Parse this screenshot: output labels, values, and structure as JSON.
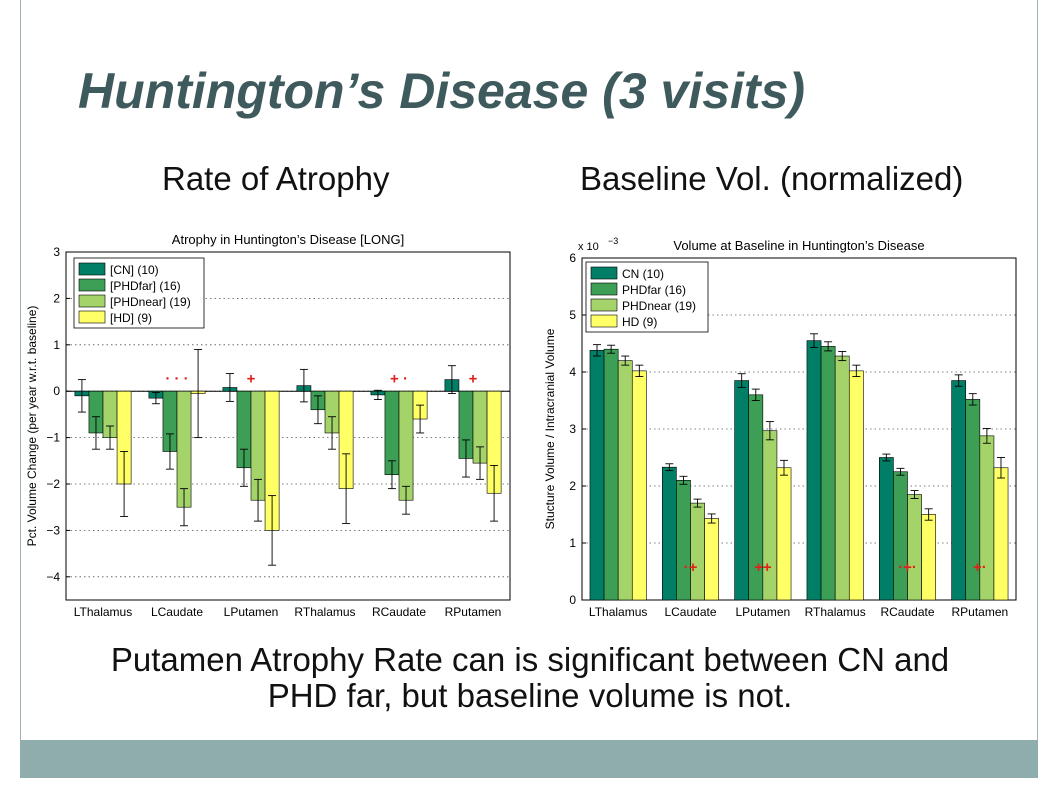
{
  "slide": {
    "title": "Huntington’s Disease (3 visits)",
    "subtitle_left": "Rate of Atrophy",
    "subtitle_right": "Baseline Vol. (normalized)",
    "caption_line1": "Putamen Atrophy Rate can is significant between CN and",
    "caption_line2": "PHD far, but baseline volume is not."
  },
  "colors": [
    "#007f66",
    "#3d9f55",
    "#a4d36a",
    "#ffff66"
  ],
  "chart_data": [
    {
      "type": "bar",
      "title": "Atrophy in Huntington’s Disease [LONG]",
      "xlabel": "",
      "ylabel": "Pct. Volume Change (per year w.r.t. baseline)",
      "ylim": [
        -4.5,
        3
      ],
      "yticks": [
        "3",
        "2",
        "1",
        "0",
        "−1",
        "−2",
        "−3",
        "−4"
      ],
      "ytick_values": [
        3,
        2,
        1,
        0,
        -1,
        -2,
        -3,
        -4
      ],
      "grid": "dotted-horizontal",
      "legend_position": "top-left",
      "categories": [
        "LThalamus",
        "LCaudate",
        "LPutamen",
        "RThalamus",
        "RCaudate",
        "RPutamen"
      ],
      "series": [
        {
          "name": "[CN] (10)",
          "values": [
            -0.1,
            -0.15,
            0.08,
            0.12,
            -0.08,
            0.25
          ],
          "errors": [
            0.35,
            0.12,
            0.3,
            0.35,
            0.1,
            0.3
          ]
        },
        {
          "name": "[PHDfar] (16)",
          "values": [
            -0.9,
            -1.3,
            -1.65,
            -0.4,
            -1.8,
            -1.45
          ],
          "errors": [
            0.35,
            0.38,
            0.4,
            0.3,
            0.3,
            0.4
          ]
        },
        {
          "name": "[PHDnear] (19)",
          "values": [
            -1.0,
            -2.5,
            -2.35,
            -0.9,
            -2.35,
            -1.55
          ],
          "errors": [
            0.25,
            0.4,
            0.45,
            0.35,
            0.3,
            0.35
          ]
        },
        {
          "name": "[HD] (9)",
          "values": [
            -2.0,
            -0.05,
            -3.0,
            -2.1,
            -0.6,
            -2.2
          ],
          "errors": [
            0.7,
            0.95,
            0.75,
            0.75,
            0.3,
            0.6
          ]
        }
      ],
      "significance_markers": [
        {
          "category": "LCaudate",
          "text": "· · ·",
          "y": 0.3
        },
        {
          "category": "LPutamen",
          "text": "+",
          "y": 0.3
        },
        {
          "category": "RCaudate",
          "text": "+  ·",
          "y": 0.3
        },
        {
          "category": "RPutamen",
          "text": "+",
          "y": 0.3
        }
      ]
    },
    {
      "type": "bar",
      "title": "Volume at Baseline in Huntington’s Disease",
      "xlabel": "",
      "ylabel": "Stucture Volume / Intracranial Volume",
      "scale_label": "x 10",
      "scale_exponent": "−3",
      "ylim": [
        0,
        6
      ],
      "yticks": [
        "6",
        "5",
        "4",
        "3",
        "2",
        "1",
        "0"
      ],
      "ytick_values": [
        6,
        5,
        4,
        3,
        2,
        1,
        0
      ],
      "grid": "dotted-horizontal",
      "legend_position": "top-left",
      "categories": [
        "LThalamus",
        "LCaudate",
        "LPutamen",
        "RThalamus",
        "RCaudate",
        "RPutamen"
      ],
      "series": [
        {
          "name": "CN (10)",
          "values": [
            4.38,
            2.33,
            3.85,
            4.55,
            2.5,
            3.85
          ],
          "errors": [
            0.1,
            0.06,
            0.12,
            0.12,
            0.06,
            0.1
          ]
        },
        {
          "name": "PHDfar (16)",
          "values": [
            4.4,
            2.1,
            3.6,
            4.45,
            2.25,
            3.52
          ],
          "errors": [
            0.07,
            0.07,
            0.1,
            0.08,
            0.06,
            0.1
          ]
        },
        {
          "name": "PHDnear (19)",
          "values": [
            4.2,
            1.7,
            2.97,
            4.28,
            1.85,
            2.88
          ],
          "errors": [
            0.08,
            0.07,
            0.16,
            0.08,
            0.07,
            0.13
          ]
        },
        {
          "name": "HD (9)",
          "values": [
            4.02,
            1.43,
            2.32,
            4.02,
            1.5,
            2.32
          ],
          "errors": [
            0.1,
            0.08,
            0.13,
            0.1,
            0.1,
            0.18
          ]
        }
      ],
      "significance_markers": [
        {
          "category": "LCaudate",
          "text": "·+",
          "y": 0.6
        },
        {
          "category": "LPutamen",
          "text": "++",
          "y": 0.6
        },
        {
          "category": "RCaudate",
          "text": "·+·",
          "y": 0.6
        },
        {
          "category": "RPutamen",
          "text": "+·",
          "y": 0.6
        }
      ]
    }
  ]
}
